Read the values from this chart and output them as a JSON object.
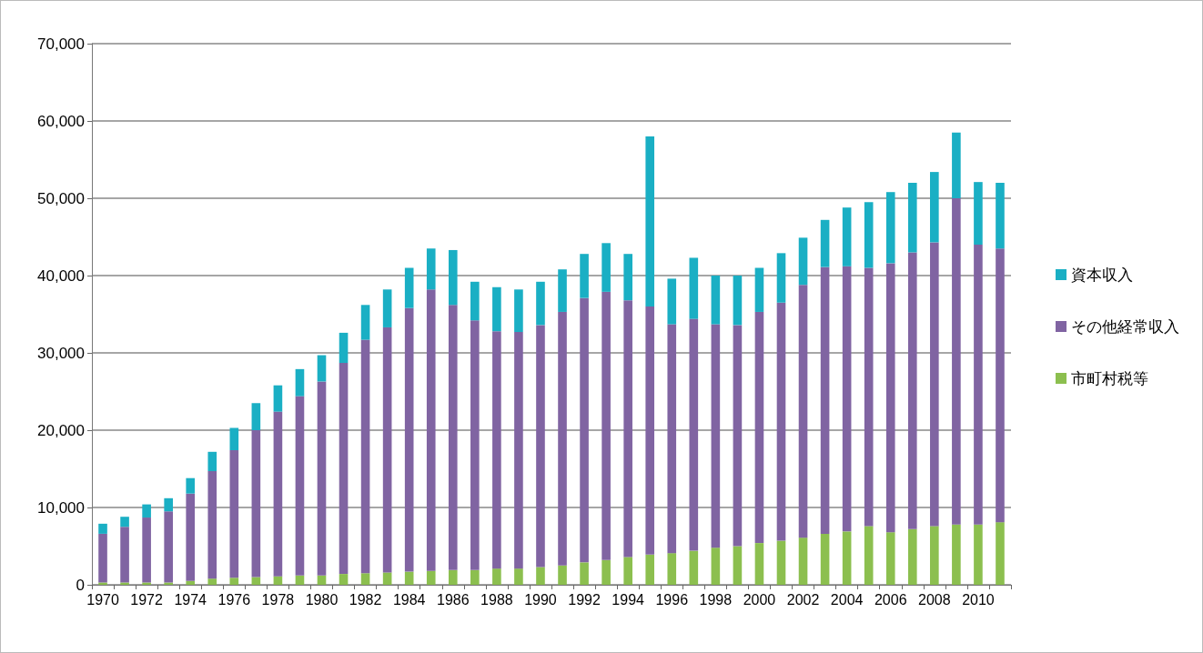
{
  "chart_data": {
    "type": "bar",
    "stacked": true,
    "categories": [
      "1970",
      null,
      "1972",
      null,
      "1974",
      null,
      "1976",
      null,
      "1978",
      null,
      "1980",
      null,
      "1982",
      null,
      "1984",
      null,
      "1986",
      null,
      "1988",
      null,
      "1990",
      null,
      "1992",
      null,
      "1994",
      null,
      "1996",
      null,
      "1998",
      null,
      "2000",
      null,
      "2002",
      null,
      "2004",
      null,
      "2006",
      null,
      "2008",
      null,
      "2010",
      null
    ],
    "series": [
      {
        "name": "市町村税等",
        "color": "#8cbf4f",
        "values": [
          300,
          300,
          300,
          300,
          500,
          800,
          900,
          1000,
          1100,
          1200,
          1200,
          1400,
          1500,
          1600,
          1700,
          1800,
          1900,
          1900,
          2100,
          2100,
          2300,
          2500,
          2900,
          3200,
          3600,
          3900,
          4100,
          4400,
          4800,
          5000,
          5400,
          5700,
          6100,
          6600,
          6900,
          7600,
          6800,
          7200,
          7600,
          7800,
          7800,
          8100
        ]
      },
      {
        "name": "その他経常収入",
        "color": "#8064a2",
        "values": [
          6300,
          7200,
          8400,
          9200,
          11300,
          13900,
          16500,
          19000,
          21300,
          23200,
          25100,
          27300,
          30200,
          31700,
          34100,
          36400,
          34300,
          32300,
          30700,
          30600,
          31300,
          32800,
          34200,
          34700,
          33200,
          32100,
          29600,
          30000,
          28900,
          28600,
          29900,
          30800,
          32700,
          34500,
          34300,
          33400,
          34800,
          35800,
          36700,
          42200,
          36200,
          35400
        ]
      },
      {
        "name": "資本収入",
        "color": "#1aafc4",
        "values": [
          1300,
          1300,
          1700,
          1700,
          2000,
          2500,
          2900,
          3500,
          3400,
          3500,
          3400,
          3900,
          4500,
          4900,
          5200,
          5300,
          7100,
          5000,
          5700,
          5500,
          5600,
          5500,
          5700,
          6300,
          6000,
          22000,
          5900,
          7900,
          6300,
          6400,
          5700,
          6400,
          6100,
          6100,
          7600,
          8500,
          9200,
          9000,
          9100,
          8500,
          8100,
          8500
        ]
      }
    ],
    "ylim": [
      0,
      70000
    ],
    "yticks": [
      0,
      {
        "value": 10000,
        "label": "10,000"
      },
      {
        "value": 20000,
        "label": "20,000"
      },
      {
        "value": 30000,
        "label": "30,000"
      },
      {
        "value": 40000,
        "label": "40,000"
      },
      {
        "value": 50000,
        "label": "50,000"
      },
      {
        "value": 60000,
        "label": "60,000"
      },
      {
        "value": 70000,
        "label": "70,000"
      }
    ],
    "grid": "y",
    "legend": "right"
  }
}
